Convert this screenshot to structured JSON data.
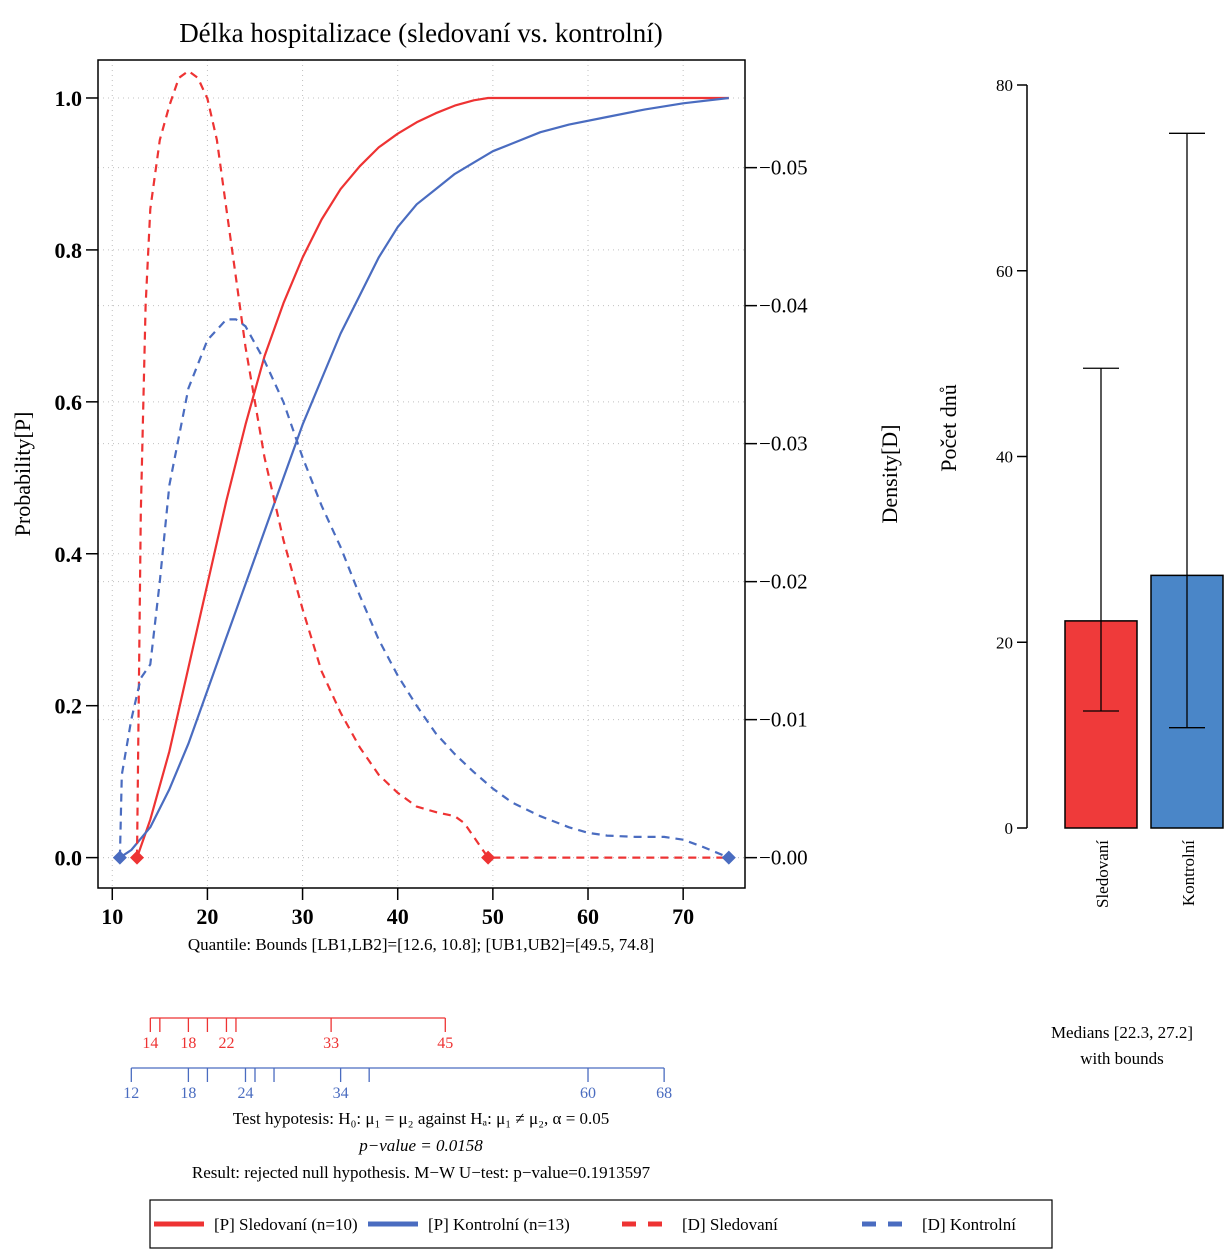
{
  "colors": {
    "sledovani": "#ee3333",
    "kontrolni": "#4a6cc0",
    "bar_red": "#ef3a3a",
    "bar_blue": "#4a86c8",
    "grid": "#c0c0c0"
  },
  "chart_data": [
    {
      "type": "line",
      "title": "Délka hospitalizace (sledovaní vs. kontrolní)",
      "ylabel": "Probability[P]",
      "ylabel_right": "Density[D]",
      "xlim": [
        8.5,
        76.5
      ],
      "ylim": [
        -0.04,
        1.05
      ],
      "ylim_right": [
        -0.0022,
        0.0578
      ],
      "x_ticks": [
        10,
        20,
        30,
        40,
        50,
        60,
        70
      ],
      "y_ticks": [
        "0.0",
        "0.2",
        "0.4",
        "0.6",
        "0.8",
        "1.0"
      ],
      "y_right_ticks": [
        "0.00",
        "0.01",
        "0.02",
        "0.03",
        "0.04",
        "0.05"
      ],
      "grid": true,
      "series": [
        {
          "name": "[P] Sledovaní (n=10)",
          "axis": "left",
          "style": "solid",
          "color": "#ee3333",
          "x": [
            12.6,
            14,
            16,
            18,
            20,
            22,
            24,
            26,
            28,
            30,
            32,
            34,
            36,
            38,
            40,
            42,
            44,
            46,
            48,
            49.5,
            55,
            60,
            65,
            70,
            74.8
          ],
          "y": [
            0,
            0.05,
            0.14,
            0.25,
            0.36,
            0.47,
            0.57,
            0.66,
            0.73,
            0.79,
            0.84,
            0.88,
            0.91,
            0.935,
            0.953,
            0.968,
            0.98,
            0.99,
            0.997,
            1.0,
            1.0,
            1.0,
            1.0,
            1.0,
            1.0
          ]
        },
        {
          "name": "[P] Kontrolní (n=13)",
          "axis": "left",
          "style": "solid",
          "color": "#4a6cc0",
          "x": [
            10.8,
            12,
            14,
            16,
            18,
            20,
            22,
            24,
            26,
            28,
            30,
            32,
            34,
            36,
            38,
            40,
            42,
            44,
            46,
            48,
            50,
            52,
            55,
            58,
            62,
            66,
            70,
            74.8
          ],
          "y": [
            0,
            0.01,
            0.04,
            0.09,
            0.15,
            0.22,
            0.29,
            0.36,
            0.43,
            0.5,
            0.57,
            0.63,
            0.69,
            0.74,
            0.79,
            0.83,
            0.86,
            0.88,
            0.9,
            0.915,
            0.93,
            0.94,
            0.955,
            0.965,
            0.975,
            0.985,
            0.993,
            1.0
          ]
        },
        {
          "name": "[D] Sledovaní",
          "axis": "right",
          "style": "dashed",
          "color": "#ee3333",
          "x": [
            12.6,
            13,
            13.5,
            14,
            15,
            16,
            17,
            18,
            19,
            20,
            21,
            22,
            23,
            24,
            26,
            28,
            30,
            32,
            34,
            36,
            38,
            40,
            42,
            44,
            46,
            47,
            48,
            49,
            49.5,
            55,
            60,
            65,
            70,
            74.8
          ],
          "y": [
            0,
            0.025,
            0.04,
            0.047,
            0.052,
            0.0545,
            0.0565,
            0.057,
            0.0565,
            0.055,
            0.052,
            0.047,
            0.042,
            0.037,
            0.029,
            0.023,
            0.018,
            0.0135,
            0.0105,
            0.008,
            0.006,
            0.0047,
            0.0037,
            0.0033,
            0.003,
            0.0025,
            0.0015,
            0.0005,
            0,
            0,
            0,
            0,
            0,
            0
          ]
        },
        {
          "name": "[D] Kontrolní",
          "axis": "right",
          "style": "dashed",
          "color": "#4a6cc0",
          "x": [
            10.8,
            11,
            12,
            13,
            14,
            15,
            16,
            18,
            20,
            22,
            23,
            24,
            26,
            28,
            30,
            32,
            34,
            36,
            38,
            40,
            42,
            44,
            46,
            48,
            50,
            52,
            55,
            58,
            60,
            62,
            65,
            68,
            70,
            72,
            74.8
          ],
          "y": [
            0,
            0.006,
            0.01,
            0.013,
            0.014,
            0.02,
            0.027,
            0.034,
            0.0375,
            0.039,
            0.039,
            0.0385,
            0.036,
            0.033,
            0.029,
            0.0255,
            0.0225,
            0.019,
            0.0158,
            0.0132,
            0.011,
            0.009,
            0.0075,
            0.0062,
            0.005,
            0.004,
            0.003,
            0.0022,
            0.0018,
            0.0016,
            0.0015,
            0.0015,
            0.0013,
            0.0008,
            0
          ]
        }
      ],
      "bound_markers": {
        "sledovani": [
          12.6,
          49.5
        ],
        "kontrolni": [
          10.8,
          74.8
        ]
      },
      "annotations": {
        "quantile": "Quantile: Bounds [LB1,LB2]=[12.6, 10.8];  [UB1,UB2]=[49.5, 74.8]",
        "hypothesis": "Test hypotesis: H₀: μ₁ = μ₂ against Hₐ: μ₁ ≠ μ₂,  α = 0.05",
        "pvalue": "p−value = 0.0158",
        "result": "Result: rejected null hypothesis. M−W U−test: p−value=0.1913597"
      },
      "rug": {
        "sledovani": {
          "ticks": [
            14,
            15,
            18,
            20,
            22,
            23,
            33,
            45
          ],
          "labels": [
            "14",
            "18",
            "22",
            "33",
            "45"
          ]
        },
        "kontrolni": {
          "ticks": [
            12,
            18,
            20,
            24,
            25,
            27,
            34,
            37,
            60,
            68
          ],
          "labels": [
            "12",
            "18",
            "24",
            "34",
            "60",
            "68"
          ]
        }
      },
      "legend": {
        "placement": "bottom",
        "entries": [
          "[P] Sledovaní (n=10)",
          "[P] Kontrolní (n=13)",
          "[D] Sledovaní",
          "[D] Kontrolní"
        ]
      }
    },
    {
      "type": "bar",
      "ylabel": "Počet dnů",
      "ylim": [
        0,
        80
      ],
      "y_ticks": [
        "0",
        "20",
        "40",
        "60",
        "80"
      ],
      "categories": [
        "Sledovaní",
        "Kontrolní"
      ],
      "values": [
        22.3,
        27.2
      ],
      "error_low": [
        12.6,
        10.8
      ],
      "error_high": [
        49.5,
        74.8
      ],
      "caption_line1": "Medians [22.3, 27.2]",
      "caption_line2": "with bounds"
    }
  ]
}
